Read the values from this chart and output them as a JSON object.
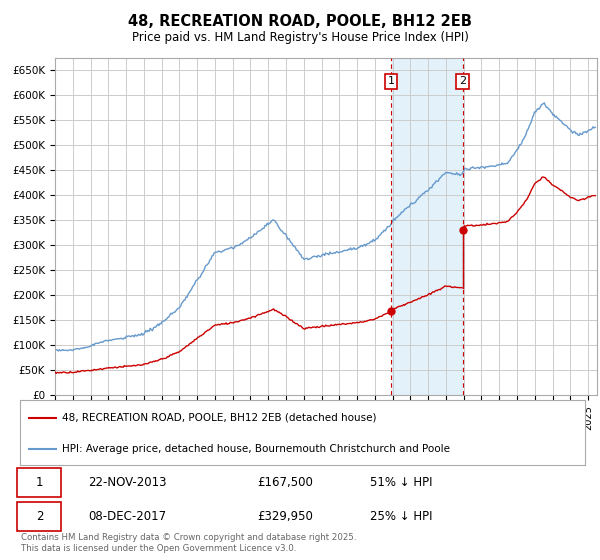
{
  "title": "48, RECREATION ROAD, POOLE, BH12 2EB",
  "subtitle": "Price paid vs. HM Land Registry's House Price Index (HPI)",
  "ylim": [
    0,
    675000
  ],
  "yticks": [
    0,
    50000,
    100000,
    150000,
    200000,
    250000,
    300000,
    350000,
    400000,
    450000,
    500000,
    550000,
    600000,
    650000
  ],
  "xlim_start": 1995.0,
  "xlim_end": 2025.5,
  "sale1_date": 2013.9,
  "sale1_price": 167500,
  "sale2_date": 2017.95,
  "sale2_price": 329950,
  "hpi_color": "#6699cc",
  "price_color": "#cc0000",
  "annotation_box_color": "#cc0000",
  "shaded_region_color": "#d0e8f8",
  "legend_label_price": "48, RECREATION ROAD, POOLE, BH12 2EB (detached house)",
  "legend_label_hpi": "HPI: Average price, detached house, Bournemouth Christchurch and Poole",
  "table_row1": [
    "1",
    "22-NOV-2013",
    "£167,500",
    "51% ↓ HPI"
  ],
  "table_row2": [
    "2",
    "08-DEC-2017",
    "£329,950",
    "25% ↓ HPI"
  ],
  "footer": "Contains HM Land Registry data © Crown copyright and database right 2025.\nThis data is licensed under the Open Government Licence v3.0.",
  "background_color": "#ffffff",
  "grid_color": "#cccccc"
}
